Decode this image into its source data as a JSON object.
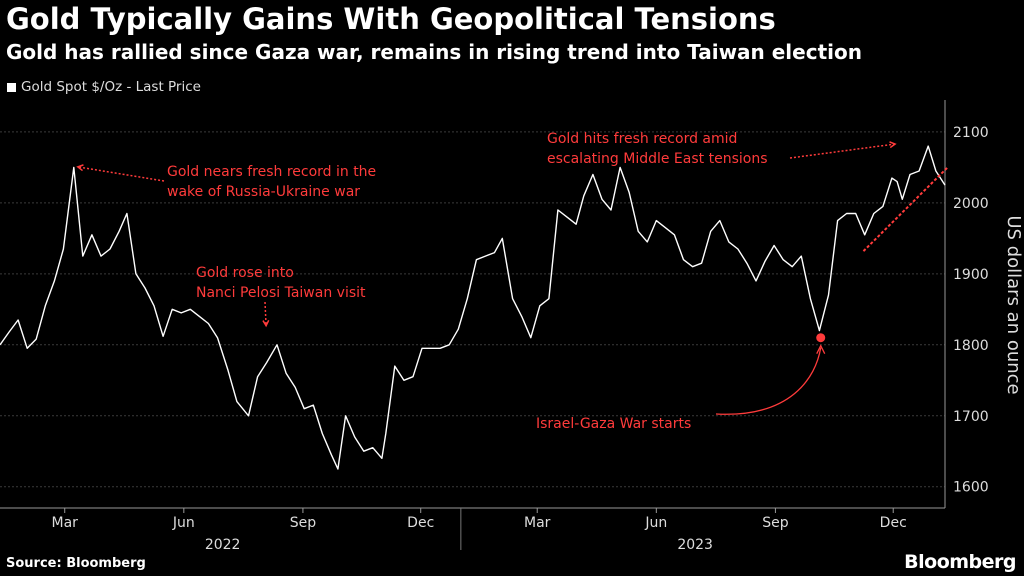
{
  "title": "Gold Typically Gains With Geopolitical Tensions",
  "subtitle": "Gold has rallied since Gaza war, remains in rising trend into Taiwan election",
  "footer": {
    "source": "Source: Bloomberg",
    "brand": "Bloomberg"
  },
  "colors": {
    "background": "#000000",
    "line": "#ffffff",
    "annotation": "#ff3b3b",
    "grid": "#3a3a3a"
  },
  "chart_data": {
    "type": "line",
    "title": "Gold Typically Gains With Geopolitical Tensions",
    "subtitle": "Gold has rallied since Gaza war, remains in rising trend into Taiwan election",
    "ylabel": "US dollars an ounce",
    "xlabel": "",
    "ylim": [
      1570,
      2145
    ],
    "xlim": [
      "2022-01-10",
      "2024-01-10"
    ],
    "yticks": [
      1600,
      1700,
      1800,
      1900,
      2000,
      2100
    ],
    "xticks": [
      {
        "label": "Mar",
        "date": "2022-03-01"
      },
      {
        "label": "Jun",
        "date": "2022-06-01"
      },
      {
        "label": "Sep",
        "date": "2022-09-01"
      },
      {
        "label": "Dec",
        "date": "2022-12-01"
      },
      {
        "label": "Mar",
        "date": "2023-03-01"
      },
      {
        "label": "Jun",
        "date": "2023-06-01"
      },
      {
        "label": "Sep",
        "date": "2023-09-01"
      },
      {
        "label": "Dec",
        "date": "2023-12-01"
      }
    ],
    "year_labels": [
      {
        "label": "2022",
        "date": "2022-07-01"
      },
      {
        "label": "2023",
        "date": "2023-07-01"
      }
    ],
    "year_divider": "2023-01-01",
    "grid": true,
    "legend": {
      "position": "top-left",
      "entries": [
        "Gold Spot $/Oz - Last Price"
      ]
    },
    "series": [
      {
        "name": "Gold Spot $/Oz - Last Price",
        "points": [
          [
            "2022-01-10",
            1800
          ],
          [
            "2022-01-17",
            1818
          ],
          [
            "2022-01-24",
            1835
          ],
          [
            "2022-01-31",
            1795
          ],
          [
            "2022-02-07",
            1808
          ],
          [
            "2022-02-14",
            1855
          ],
          [
            "2022-02-21",
            1890
          ],
          [
            "2022-02-28",
            1935
          ],
          [
            "2022-03-08",
            2050
          ],
          [
            "2022-03-15",
            1925
          ],
          [
            "2022-03-22",
            1955
          ],
          [
            "2022-03-29",
            1925
          ],
          [
            "2022-04-05",
            1935
          ],
          [
            "2022-04-12",
            1960
          ],
          [
            "2022-04-18",
            1985
          ],
          [
            "2022-04-25",
            1900
          ],
          [
            "2022-05-02",
            1880
          ],
          [
            "2022-05-09",
            1855
          ],
          [
            "2022-05-16",
            1812
          ],
          [
            "2022-05-23",
            1850
          ],
          [
            "2022-05-30",
            1845
          ],
          [
            "2022-06-06",
            1850
          ],
          [
            "2022-06-13",
            1840
          ],
          [
            "2022-06-20",
            1830
          ],
          [
            "2022-06-27",
            1810
          ],
          [
            "2022-07-05",
            1765
          ],
          [
            "2022-07-12",
            1720
          ],
          [
            "2022-07-21",
            1700
          ],
          [
            "2022-07-28",
            1755
          ],
          [
            "2022-08-04",
            1775
          ],
          [
            "2022-08-12",
            1800
          ],
          [
            "2022-08-19",
            1760
          ],
          [
            "2022-08-26",
            1740
          ],
          [
            "2022-09-02",
            1710
          ],
          [
            "2022-09-09",
            1715
          ],
          [
            "2022-09-16",
            1675
          ],
          [
            "2022-09-23",
            1645
          ],
          [
            "2022-09-28",
            1625
          ],
          [
            "2022-10-04",
            1700
          ],
          [
            "2022-10-11",
            1670
          ],
          [
            "2022-10-18",
            1650
          ],
          [
            "2022-10-25",
            1655
          ],
          [
            "2022-11-01",
            1640
          ],
          [
            "2022-11-04",
            1675
          ],
          [
            "2022-11-11",
            1770
          ],
          [
            "2022-11-18",
            1750
          ],
          [
            "2022-11-25",
            1755
          ],
          [
            "2022-12-02",
            1795
          ],
          [
            "2022-12-09",
            1795
          ],
          [
            "2022-12-16",
            1795
          ],
          [
            "2022-12-23",
            1800
          ],
          [
            "2022-12-30",
            1822
          ],
          [
            "2023-01-06",
            1865
          ],
          [
            "2023-01-13",
            1920
          ],
          [
            "2023-01-20",
            1925
          ],
          [
            "2023-01-27",
            1930
          ],
          [
            "2023-02-02",
            1950
          ],
          [
            "2023-02-10",
            1865
          ],
          [
            "2023-02-17",
            1840
          ],
          [
            "2023-02-24",
            1810
          ],
          [
            "2023-03-03",
            1855
          ],
          [
            "2023-03-10",
            1865
          ],
          [
            "2023-03-17",
            1990
          ],
          [
            "2023-03-24",
            1980
          ],
          [
            "2023-03-31",
            1970
          ],
          [
            "2023-04-06",
            2010
          ],
          [
            "2023-04-13",
            2040
          ],
          [
            "2023-04-20",
            2005
          ],
          [
            "2023-04-27",
            1990
          ],
          [
            "2023-05-04",
            2050
          ],
          [
            "2023-05-11",
            2015
          ],
          [
            "2023-05-18",
            1960
          ],
          [
            "2023-05-25",
            1945
          ],
          [
            "2023-06-01",
            1975
          ],
          [
            "2023-06-08",
            1965
          ],
          [
            "2023-06-15",
            1955
          ],
          [
            "2023-06-22",
            1920
          ],
          [
            "2023-06-29",
            1910
          ],
          [
            "2023-07-06",
            1915
          ],
          [
            "2023-07-13",
            1960
          ],
          [
            "2023-07-20",
            1975
          ],
          [
            "2023-07-27",
            1945
          ],
          [
            "2023-08-03",
            1935
          ],
          [
            "2023-08-10",
            1915
          ],
          [
            "2023-08-17",
            1890
          ],
          [
            "2023-08-24",
            1918
          ],
          [
            "2023-08-31",
            1940
          ],
          [
            "2023-09-07",
            1920
          ],
          [
            "2023-09-14",
            1910
          ],
          [
            "2023-09-21",
            1925
          ],
          [
            "2023-09-28",
            1865
          ],
          [
            "2023-10-05",
            1820
          ],
          [
            "2023-10-12",
            1870
          ],
          [
            "2023-10-19",
            1975
          ],
          [
            "2023-10-26",
            1985
          ],
          [
            "2023-11-02",
            1985
          ],
          [
            "2023-11-09",
            1955
          ],
          [
            "2023-11-16",
            1985
          ],
          [
            "2023-11-23",
            1995
          ],
          [
            "2023-11-30",
            2035
          ],
          [
            "2023-12-04",
            2030
          ],
          [
            "2023-12-08",
            2005
          ],
          [
            "2023-12-14",
            2040
          ],
          [
            "2023-12-21",
            2045
          ],
          [
            "2023-12-28",
            2080
          ],
          [
            "2024-01-03",
            2045
          ],
          [
            "2024-01-10",
            2025
          ]
        ]
      }
    ],
    "annotations": [
      {
        "text": [
          "Gold nears fresh record in the",
          "wake of Russia-Ukraine war"
        ],
        "target": [
          "2022-03-08",
          2055
        ]
      },
      {
        "text": [
          "Gold rose into",
          "Nanci Pelosi Taiwan visit"
        ],
        "target": [
          "2022-08-02",
          1810
        ]
      },
      {
        "text": [
          "Gold hits fresh record amid",
          "escalating Middle East tensions"
        ],
        "target": [
          "2023-12-04",
          2090
        ]
      },
      {
        "text": [
          "Israel-Gaza War starts"
        ],
        "target": [
          "2023-10-06",
          1810
        ]
      }
    ],
    "marker": {
      "date": "2023-10-06",
      "value": 1810
    },
    "trendline": [
      [
        "2023-11-08",
        1932
      ],
      [
        "2024-01-12",
        2050
      ]
    ]
  }
}
